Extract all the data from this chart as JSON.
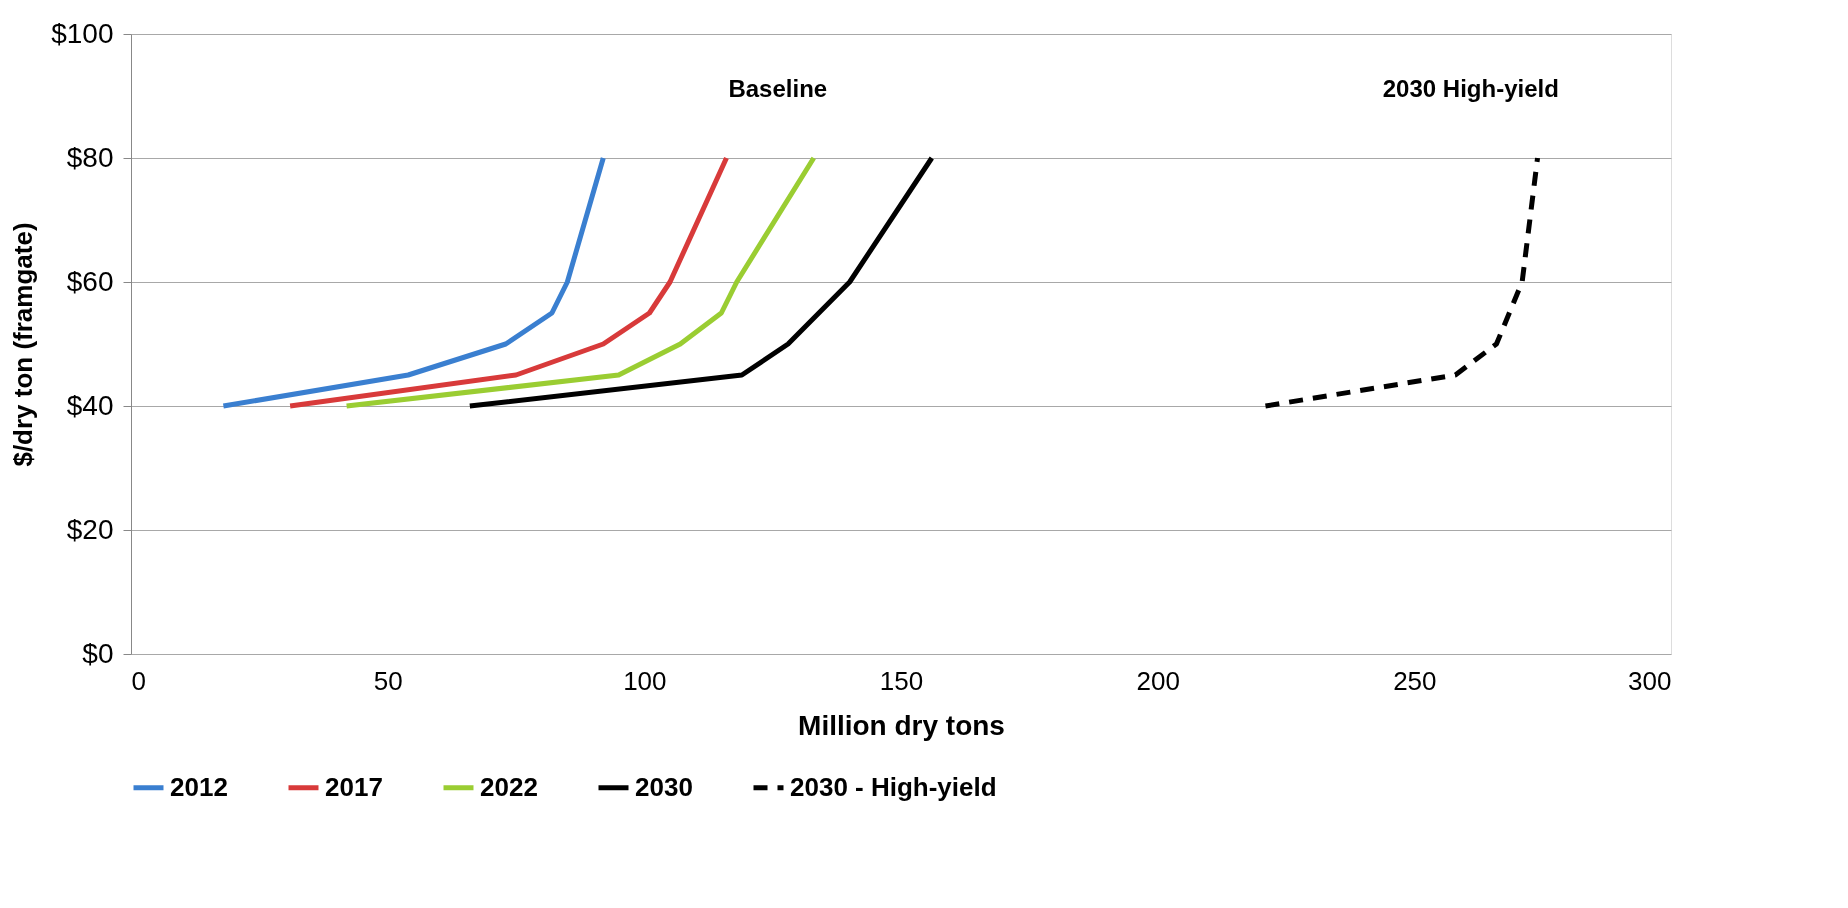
{
  "chart_data": {
    "type": "line",
    "xlabel": "Million dry tons",
    "ylabel": "$/dry ton (framgate)",
    "xlim": [
      0,
      300
    ],
    "xticks": [
      0,
      50,
      100,
      150,
      200,
      250,
      300
    ],
    "ylim": [
      0,
      100
    ],
    "yticks": [
      {
        "value": 0,
        "label": "$0"
      },
      {
        "value": 20,
        "label": "$20"
      },
      {
        "value": 40,
        "label": "$40"
      },
      {
        "value": 60,
        "label": "$60"
      },
      {
        "value": 80,
        "label": "$80"
      },
      {
        "value": 100,
        "label": "$100"
      }
    ],
    "grid": "y",
    "legend": "bottom",
    "marker": "none",
    "series": [
      {
        "name": "2012",
        "color": "#3a7fd0",
        "line_style": "solid",
        "x": [
          18,
          54,
          73,
          82,
          85,
          92
        ],
        "values": [
          40,
          45,
          50,
          55,
          60,
          80
        ]
      },
      {
        "name": "2017",
        "color": "#d83a3a",
        "line_style": "solid",
        "x": [
          31,
          75,
          92,
          101,
          105,
          116
        ],
        "values": [
          40,
          45,
          50,
          55,
          60,
          80
        ]
      },
      {
        "name": "2022",
        "color": "#9acd32",
        "line_style": "solid",
        "x": [
          42,
          95,
          107,
          115,
          118,
          133
        ],
        "values": [
          40,
          45,
          50,
          55,
          60,
          80
        ]
      },
      {
        "name": "2030",
        "color": "#000000",
        "line_style": "solid",
        "x": [
          66,
          119,
          128,
          140,
          156
        ],
        "values": [
          40,
          45,
          50,
          60,
          80
        ]
      },
      {
        "name": "2030 - High-yield",
        "color": "#000000",
        "line_style": "dashed",
        "x": [
          221,
          258,
          266,
          271,
          274
        ],
        "values": [
          40,
          45,
          50,
          60,
          80
        ]
      }
    ],
    "annotations": [
      "Baseline",
      "2030 High-yield"
    ]
  }
}
